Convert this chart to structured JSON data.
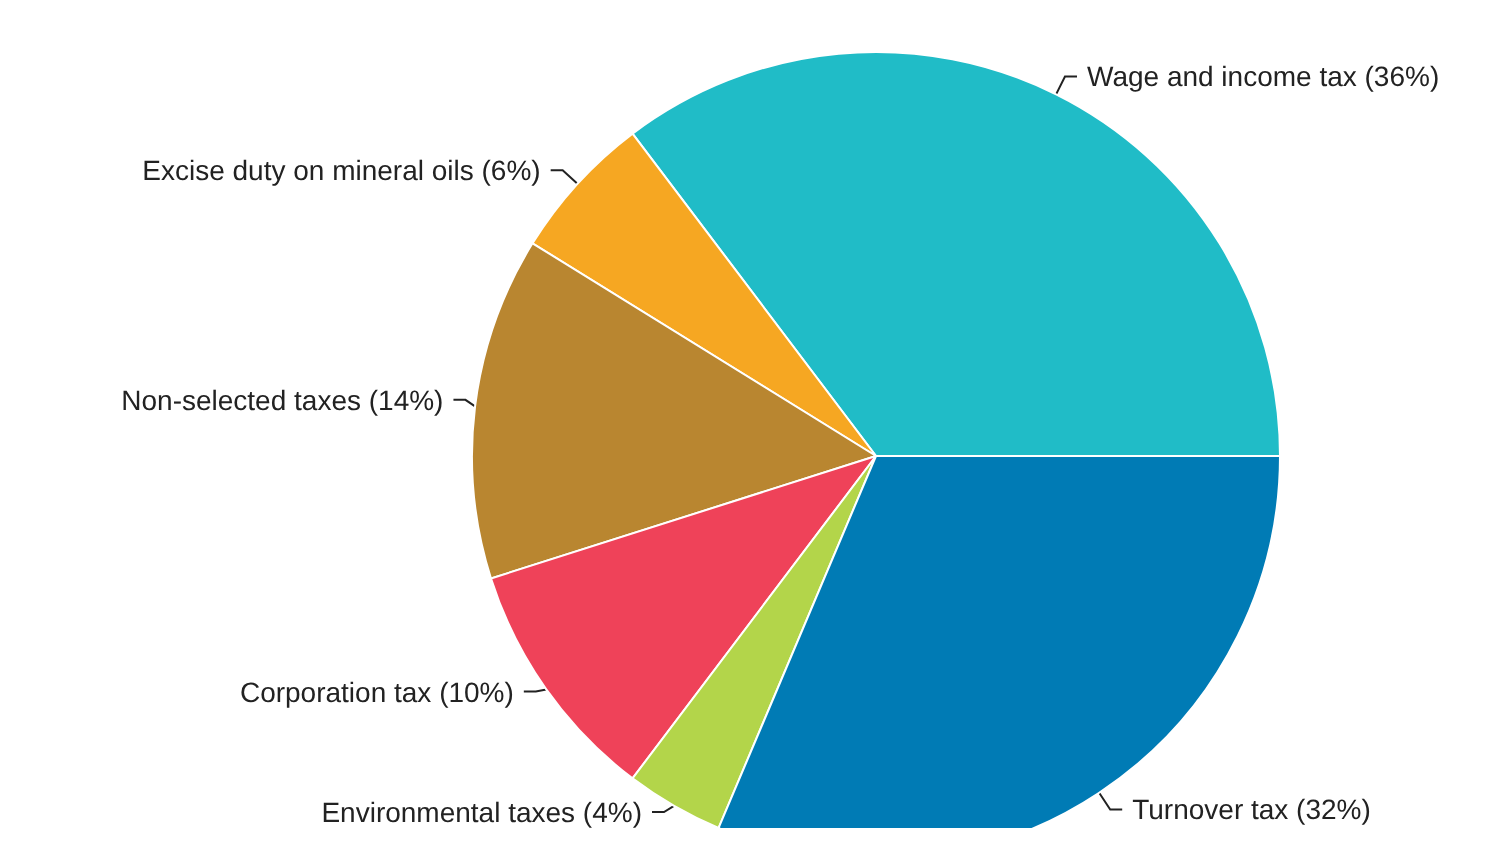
{
  "chart_data": {
    "type": "pie",
    "categories": [
      "Wage and income tax (36%)",
      "Excise duty on mineral oils (6%)",
      "Non-selected taxes (14%)",
      "Corporation tax (10%)",
      "Environmental taxes (4%)",
      "Turnover tax (32%)"
    ],
    "values": [
      36,
      6,
      14,
      10,
      4,
      32
    ],
    "colors": [
      "#20bcc7",
      "#f6a722",
      "#b98630",
      "#ef4259",
      "#b3d54a",
      "#007bb5"
    ],
    "legend": false
  }
}
